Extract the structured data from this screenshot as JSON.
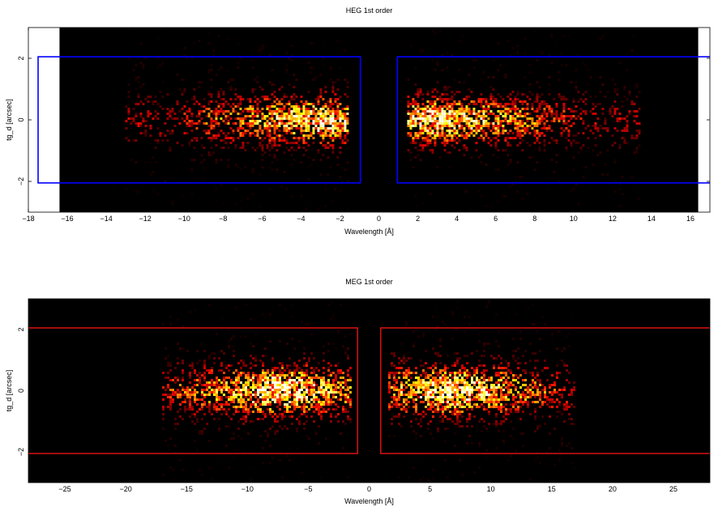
{
  "chart_data": [
    {
      "type": "heatmap",
      "title": "HEG 1st order",
      "xlabel": "Wavelength [Å]",
      "ylabel": "tg_d [arcsec]",
      "xlim": [
        -18,
        17
      ],
      "ylim": [
        -3,
        3
      ],
      "x_ticks": [
        -18,
        -16,
        -14,
        -12,
        -10,
        -8,
        -6,
        -4,
        -2,
        0,
        2,
        4,
        6,
        8,
        10,
        12,
        14,
        16
      ],
      "y_ticks": [
        -2,
        0,
        2
      ],
      "data_x_range": [
        -16.4,
        16.4
      ],
      "grid": false,
      "colormap": "hot",
      "background_color": "#000000",
      "extraction_regions": {
        "color": "#0000ff",
        "boxes": [
          {
            "x": [
              -17.5,
              -0.95
            ],
            "y": [
              -2.05,
              2.05
            ]
          },
          {
            "x": [
              0.95,
              17.5
            ],
            "y": [
              -2.05,
              2.05
            ]
          }
        ]
      },
      "emission_lobes": [
        {
          "x_range": [
            -13,
            -1.5
          ],
          "peak_x": -3,
          "peak_y": 0,
          "y_sigma": 0.5,
          "relative_intensity": 1.0
        },
        {
          "x_range": [
            1.5,
            13.5
          ],
          "peak_x": 2.8,
          "peak_y": 0,
          "y_sigma": 0.5,
          "relative_intensity": 1.0
        }
      ]
    },
    {
      "type": "heatmap",
      "title": "MEG 1st order",
      "xlabel": "Wavelength [Å]",
      "ylabel": "tg_d [arcsec]",
      "xlim": [
        -28,
        28
      ],
      "ylim": [
        -3,
        3
      ],
      "x_ticks": [
        -25,
        -20,
        -15,
        -10,
        -5,
        0,
        5,
        10,
        15,
        20,
        25
      ],
      "y_ticks": [
        -2,
        0,
        2
      ],
      "data_x_range": [
        -28,
        28
      ],
      "grid": false,
      "colormap": "hot",
      "background_color": "#000000",
      "extraction_regions": {
        "color": "#cc1111",
        "boxes": [
          {
            "x": [
              -29,
              -0.95
            ],
            "y": [
              -2.05,
              2.05
            ]
          },
          {
            "x": [
              0.95,
              29
            ],
            "y": [
              -2.05,
              2.05
            ]
          }
        ]
      },
      "emission_lobes": [
        {
          "x_range": [
            -17,
            -1.5
          ],
          "peak_x": -7.5,
          "peak_y": 0,
          "y_sigma": 0.55,
          "relative_intensity": 1.0
        },
        {
          "x_range": [
            1.5,
            17
          ],
          "peak_x": 7,
          "peak_y": 0,
          "y_sigma": 0.55,
          "relative_intensity": 1.0
        }
      ]
    }
  ]
}
